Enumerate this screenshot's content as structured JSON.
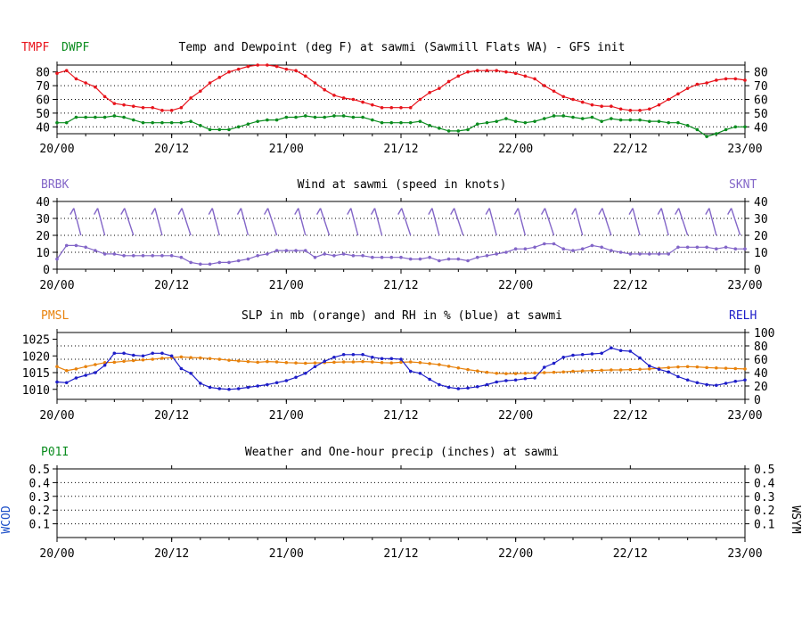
{
  "chart_data": [
    {
      "type": "line",
      "title": "Temp and Dewpoint (deg F) at sawmi (Sawmill Flats WA) - GFS init",
      "left_legend": [
        {
          "label": "TMPF",
          "color": "#e8141c"
        },
        {
          "label": "DWPF",
          "color": "#0a8c1e"
        }
      ],
      "ylim": [
        35,
        85
      ],
      "yticks": [
        40,
        50,
        60,
        70,
        80
      ],
      "xlim": [
        0,
        72
      ],
      "xticks": [
        0,
        12,
        24,
        36,
        48,
        60,
        72
      ],
      "xtick_labels": [
        "20/00",
        "20/12",
        "21/00",
        "21/12",
        "22/00",
        "22/12",
        "23/00"
      ],
      "series": [
        {
          "name": "TMPF",
          "color": "#e8141c",
          "x": [
            0,
            1,
            2,
            3,
            4,
            5,
            6,
            7,
            8,
            9,
            10,
            11,
            12,
            13,
            14,
            15,
            16,
            17,
            18,
            19,
            20,
            21,
            22,
            23,
            24,
            25,
            26,
            27,
            28,
            29,
            30,
            31,
            32,
            33,
            34,
            35,
            36,
            37,
            38,
            39,
            40,
            41,
            42,
            43,
            44,
            45,
            46,
            47,
            48,
            49,
            50,
            51,
            52,
            53,
            54,
            55,
            56,
            57,
            58,
            59,
            60,
            61,
            62,
            63,
            64,
            65,
            66,
            67,
            68,
            69,
            70,
            71,
            72
          ],
          "values": [
            79,
            81,
            75,
            72,
            69,
            62,
            57,
            56,
            55,
            54,
            54,
            52,
            52,
            54,
            61,
            66,
            72,
            76,
            80,
            82,
            84,
            85,
            85,
            84,
            82,
            81,
            77,
            72,
            67,
            63,
            61,
            60,
            58,
            56,
            54,
            54,
            54,
            54,
            60,
            65,
            68,
            73,
            77,
            80,
            81,
            81,
            81,
            80,
            79,
            77,
            75,
            70,
            66,
            62,
            60,
            58,
            56,
            55,
            55,
            53,
            52,
            52,
            53,
            56,
            60,
            64,
            68,
            71,
            72,
            74,
            75,
            75,
            74
          ]
        },
        {
          "name": "DWPF",
          "color": "#0a8c1e",
          "x": [
            0,
            1,
            2,
            3,
            4,
            5,
            6,
            7,
            8,
            9,
            10,
            11,
            12,
            13,
            14,
            15,
            16,
            17,
            18,
            19,
            20,
            21,
            22,
            23,
            24,
            25,
            26,
            27,
            28,
            29,
            30,
            31,
            32,
            33,
            34,
            35,
            36,
            37,
            38,
            39,
            40,
            41,
            42,
            43,
            44,
            45,
            46,
            47,
            48,
            49,
            50,
            51,
            52,
            53,
            54,
            55,
            56,
            57,
            58,
            59,
            60,
            61,
            62,
            63,
            64,
            65,
            66,
            67,
            68,
            69,
            70,
            71,
            72
          ],
          "values": [
            43,
            43,
            47,
            47,
            47,
            47,
            48,
            47,
            45,
            43,
            43,
            43,
            43,
            43,
            44,
            41,
            38,
            38,
            38,
            40,
            42,
            44,
            45,
            45,
            47,
            47,
            48,
            47,
            47,
            48,
            48,
            47,
            47,
            45,
            43,
            43,
            43,
            43,
            44,
            41,
            39,
            37,
            37,
            38,
            42,
            43,
            44,
            46,
            44,
            43,
            44,
            46,
            48,
            48,
            47,
            46,
            47,
            44,
            46,
            45,
            45,
            45,
            44,
            44,
            43,
            43,
            41,
            38,
            33,
            35,
            38,
            40,
            40
          ]
        }
      ]
    },
    {
      "type": "line",
      "title": "Wind at  sawmi (speed in knots)",
      "left_legend": [
        {
          "label": "BRBK",
          "color": "#8366c8"
        }
      ],
      "right_legend": [
        {
          "label": "SKNT",
          "color": "#8366c8"
        }
      ],
      "ylim": [
        0,
        40
      ],
      "yticks": [
        0,
        10,
        20,
        30,
        40
      ],
      "xlim": [
        0,
        72
      ],
      "xticks": [
        0,
        12,
        24,
        36,
        48,
        60,
        72
      ],
      "xtick_labels": [
        "20/00",
        "20/12",
        "21/00",
        "21/12",
        "22/00",
        "22/12",
        "23/00"
      ],
      "barb_color": "#8366c8",
      "barb_x": [
        2.5,
        5,
        8,
        11,
        14,
        17,
        20,
        23,
        26,
        28.5,
        31.5,
        34,
        37,
        40,
        42.5,
        46,
        49,
        52,
        55,
        58,
        61,
        64,
        66,
        69,
        71.5
      ],
      "series": [
        {
          "name": "SKNT",
          "color": "#8366c8",
          "x": [
            0,
            1,
            2,
            3,
            4,
            5,
            6,
            7,
            8,
            9,
            10,
            11,
            12,
            13,
            14,
            15,
            16,
            17,
            18,
            19,
            20,
            21,
            22,
            23,
            24,
            25,
            26,
            27,
            28,
            29,
            30,
            31,
            32,
            33,
            34,
            35,
            36,
            37,
            38,
            39,
            40,
            41,
            42,
            43,
            44,
            45,
            46,
            47,
            48,
            49,
            50,
            51,
            52,
            53,
            54,
            55,
            56,
            57,
            58,
            59,
            60,
            61,
            62,
            63,
            64,
            65,
            66,
            67,
            68,
            69,
            70,
            71,
            72
          ],
          "values": [
            6,
            14,
            14,
            13,
            11,
            9,
            9,
            8,
            8,
            8,
            8,
            8,
            8,
            7,
            4,
            3,
            3,
            4,
            4,
            5,
            6,
            8,
            9,
            11,
            11,
            11,
            11,
            7,
            9,
            8,
            9,
            8,
            8,
            7,
            7,
            7,
            7,
            6,
            6,
            7,
            5,
            6,
            6,
            5,
            7,
            8,
            9,
            10,
            12,
            12,
            13,
            15,
            15,
            12,
            11,
            12,
            14,
            13,
            11,
            10,
            9,
            9,
            9,
            9,
            9,
            13,
            13,
            13,
            13,
            12,
            13,
            12,
            12
          ]
        }
      ]
    },
    {
      "type": "line",
      "title": "SLP in mb (orange) and RH in % (blue) at  sawmi",
      "left_legend": [
        {
          "label": "PMSL",
          "color": "#e8820c"
        }
      ],
      "right_legend": [
        {
          "label": "RELH",
          "color": "#1e1ec8"
        }
      ],
      "left_ylim": [
        1007,
        1027
      ],
      "left_yticks": [
        1010,
        1015,
        1020,
        1025
      ],
      "right_ylim": [
        0,
        100
      ],
      "right_yticks": [
        0,
        20,
        40,
        60,
        80,
        100
      ],
      "xlim": [
        0,
        72
      ],
      "xticks": [
        0,
        12,
        24,
        36,
        48,
        60,
        72
      ],
      "xtick_labels": [
        "20/00",
        "20/12",
        "21/00",
        "21/12",
        "22/00",
        "22/12",
        "23/00"
      ],
      "series": [
        {
          "name": "PMSL",
          "color": "#e8820c",
          "axis": "left",
          "x": [
            0,
            1,
            2,
            3,
            4,
            5,
            6,
            7,
            8,
            9,
            10,
            11,
            12,
            13,
            14,
            15,
            16,
            17,
            18,
            19,
            20,
            21,
            22,
            23,
            24,
            25,
            26,
            27,
            28,
            29,
            30,
            31,
            32,
            33,
            34,
            35,
            36,
            37,
            38,
            39,
            40,
            41,
            42,
            43,
            44,
            45,
            46,
            47,
            48,
            49,
            50,
            51,
            52,
            53,
            54,
            55,
            56,
            57,
            58,
            59,
            60,
            61,
            62,
            63,
            64,
            65,
            66,
            67,
            68,
            69,
            70,
            71,
            72
          ],
          "values": [
            1016.8,
            1015.6,
            1016.1,
            1016.8,
            1017.4,
            1018.0,
            1018.1,
            1018.4,
            1018.6,
            1018.8,
            1019.0,
            1019.3,
            1019.5,
            1019.7,
            1019.5,
            1019.4,
            1019.2,
            1019.0,
            1018.7,
            1018.5,
            1018.3,
            1018.1,
            1018.3,
            1018.2,
            1018.0,
            1017.9,
            1017.8,
            1017.9,
            1018.0,
            1018.1,
            1018.2,
            1018.2,
            1018.3,
            1018.2,
            1018.0,
            1017.9,
            1018.1,
            1018.2,
            1018.0,
            1017.7,
            1017.4,
            1016.9,
            1016.4,
            1015.9,
            1015.5,
            1015.1,
            1014.8,
            1014.7,
            1014.7,
            1014.8,
            1014.9,
            1015.0,
            1015.1,
            1015.2,
            1015.4,
            1015.5,
            1015.6,
            1015.7,
            1015.8,
            1015.8,
            1015.9,
            1016.0,
            1016.1,
            1016.3,
            1016.5,
            1016.7,
            1016.8,
            1016.7,
            1016.5,
            1016.4,
            1016.3,
            1016.2,
            1016.1
          ]
        },
        {
          "name": "RELH",
          "color": "#1e1ec8",
          "axis": "right",
          "x": [
            0,
            1,
            2,
            3,
            4,
            5,
            6,
            7,
            8,
            9,
            10,
            11,
            12,
            13,
            14,
            15,
            16,
            17,
            18,
            19,
            20,
            21,
            22,
            23,
            24,
            25,
            26,
            27,
            28,
            29,
            30,
            31,
            32,
            33,
            34,
            35,
            36,
            37,
            38,
            39,
            40,
            41,
            42,
            43,
            44,
            45,
            46,
            47,
            48,
            49,
            50,
            51,
            52,
            53,
            54,
            55,
            56,
            57,
            58,
            59,
            60,
            61,
            62,
            63,
            64,
            65,
            66,
            67,
            68,
            69,
            70,
            71,
            72
          ],
          "values": [
            26,
            25,
            32,
            36,
            40,
            51,
            69,
            69,
            66,
            65,
            69,
            69,
            65,
            46,
            39,
            24,
            18,
            16,
            15,
            16,
            18,
            20,
            22,
            25,
            28,
            33,
            39,
            49,
            57,
            63,
            67,
            67,
            67,
            63,
            61,
            61,
            60,
            42,
            39,
            30,
            22,
            18,
            16,
            17,
            19,
            22,
            26,
            28,
            29,
            31,
            32,
            48,
            54,
            63,
            66,
            67,
            68,
            69,
            77,
            73,
            72,
            62,
            50,
            45,
            41,
            34,
            29,
            25,
            22,
            21,
            24,
            27,
            29
          ]
        }
      ]
    },
    {
      "type": "line",
      "title": "Weather and One-hour precip (inches) at  sawmi",
      "left_legend": [
        {
          "label": "P01I",
          "color": "#0a8c1e"
        }
      ],
      "left_side_label": {
        "text": "WCOD",
        "color": "#1e50c8"
      },
      "right_side_label": {
        "text": "WSYM",
        "color": "#000000"
      },
      "ylim": [
        0,
        0.5
      ],
      "yticks": [
        0.1,
        0.2,
        0.3,
        0.4,
        0.5
      ],
      "ytick_labels": [
        "0.1",
        "0.2",
        "0.3",
        "0.4",
        "0.5"
      ],
      "xlim": [
        0,
        72
      ],
      "xticks": [
        0,
        12,
        24,
        36,
        48,
        60,
        72
      ],
      "xtick_labels": [
        "20/00",
        "20/12",
        "21/00",
        "21/12",
        "22/00",
        "22/12",
        "23/00"
      ],
      "series": []
    }
  ]
}
